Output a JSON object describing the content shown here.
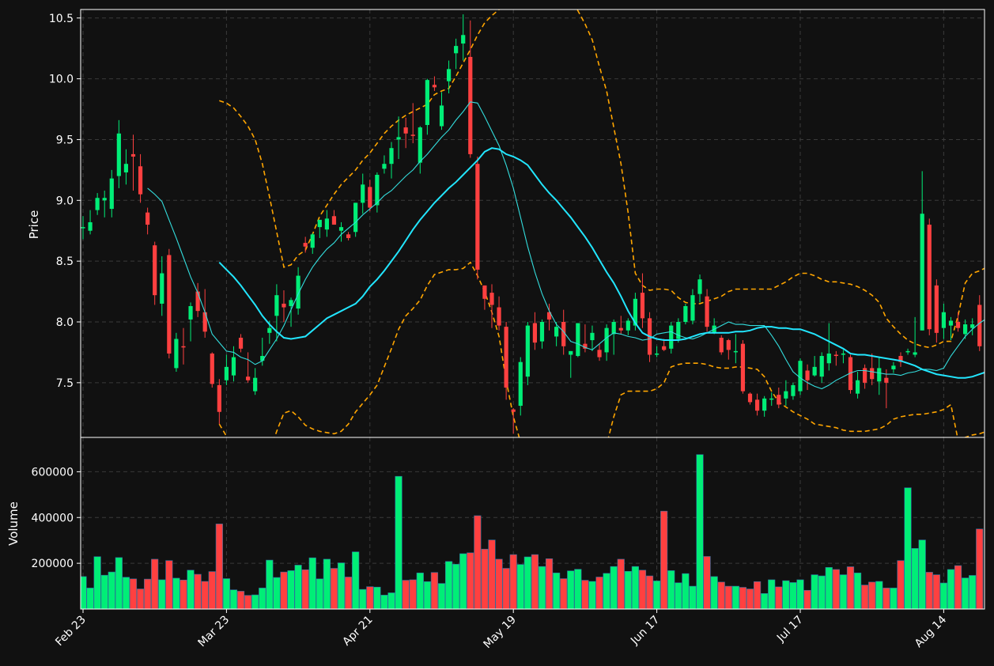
{
  "chart_data": {
    "type": "candlestick",
    "title": "",
    "colors": {
      "background": "#111111",
      "up": "#00ee77",
      "down": "#ff4040",
      "ma_fast": "#33dddd",
      "ma_slow": "#22e6ff",
      "bands": "#ffa500",
      "grid": "#3a3a3a",
      "text": "#ffffff"
    },
    "price_panel": {
      "ylabel": "Price",
      "ylim": [
        7.05,
        10.57
      ],
      "yticks": [
        "7.5",
        "8.0",
        "8.5",
        "9.0",
        "9.5",
        "10.0",
        "10.5"
      ],
      "grid": true
    },
    "volume_panel": {
      "ylabel": "Volume",
      "ylim": [
        0,
        750000
      ],
      "yticks": [
        "200000",
        "400000",
        "600000"
      ],
      "grid": true
    },
    "xticks": [
      {
        "label": "Feb 23",
        "index": 0
      },
      {
        "label": "Mar 23",
        "index": 20
      },
      {
        "label": "Apr 21",
        "index": 40
      },
      {
        "label": "May 19",
        "index": 60
      },
      {
        "label": "Jun 17",
        "index": 80
      },
      {
        "label": "Jul 17",
        "index": 100
      },
      {
        "label": "Aug 14",
        "index": 120
      }
    ],
    "ohlc": [
      [
        8.78,
        8.87,
        8.68,
        8.78
      ],
      [
        8.75,
        8.92,
        8.72,
        8.82
      ],
      [
        8.92,
        9.06,
        8.88,
        9.02
      ],
      [
        9.0,
        9.08,
        8.86,
        9.02
      ],
      [
        8.93,
        9.25,
        8.86,
        9.18
      ],
      [
        9.2,
        9.66,
        9.1,
        9.55
      ],
      [
        9.23,
        9.42,
        9.13,
        9.3
      ],
      [
        9.38,
        9.54,
        9.08,
        9.36
      ],
      [
        9.28,
        9.38,
        8.98,
        9.05
      ],
      [
        8.9,
        8.94,
        8.72,
        8.8
      ],
      [
        8.63,
        8.66,
        8.14,
        8.22
      ],
      [
        8.15,
        8.54,
        8.05,
        8.4
      ],
      [
        8.55,
        8.6,
        7.7,
        7.74
      ],
      [
        7.62,
        7.91,
        7.59,
        7.86
      ],
      [
        7.8,
        7.95,
        7.65,
        7.79
      ],
      [
        8.02,
        8.16,
        7.84,
        8.13
      ],
      [
        8.25,
        8.32,
        8.04,
        8.09
      ],
      [
        8.08,
        8.27,
        7.87,
        7.92
      ],
      [
        7.74,
        7.75,
        7.46,
        7.49
      ],
      [
        7.48,
        7.53,
        7.16,
        7.26
      ],
      [
        7.52,
        7.73,
        7.48,
        7.63
      ],
      [
        7.56,
        7.8,
        7.51,
        7.71
      ],
      [
        7.87,
        7.9,
        7.75,
        7.78
      ],
      [
        7.55,
        7.75,
        7.5,
        7.52
      ],
      [
        7.43,
        7.62,
        7.4,
        7.54
      ],
      [
        7.68,
        7.87,
        7.64,
        7.72
      ],
      [
        7.91,
        8.01,
        7.82,
        7.95
      ],
      [
        8.05,
        8.31,
        7.84,
        8.22
      ],
      [
        8.15,
        8.26,
        8.0,
        8.12
      ],
      [
        8.13,
        8.2,
        7.96,
        8.18
      ],
      [
        8.11,
        8.45,
        8.06,
        8.38
      ],
      [
        8.65,
        8.7,
        8.57,
        8.62
      ],
      [
        8.61,
        8.73,
        8.56,
        8.72
      ],
      [
        8.78,
        8.83,
        8.69,
        8.84
      ],
      [
        8.76,
        8.92,
        8.7,
        8.85
      ],
      [
        8.87,
        8.92,
        8.8,
        8.8
      ],
      [
        8.75,
        8.82,
        8.66,
        8.78
      ],
      [
        8.72,
        8.74,
        8.67,
        8.69
      ],
      [
        8.74,
        8.98,
        8.7,
        8.98
      ],
      [
        8.98,
        9.22,
        8.89,
        9.13
      ],
      [
        9.11,
        9.17,
        8.91,
        8.94
      ],
      [
        8.96,
        9.23,
        8.9,
        9.21
      ],
      [
        9.26,
        9.37,
        9.22,
        9.3
      ],
      [
        9.3,
        9.48,
        9.18,
        9.43
      ],
      [
        9.5,
        9.69,
        9.34,
        9.52
      ],
      [
        9.6,
        9.68,
        9.43,
        9.55
      ],
      [
        9.54,
        9.8,
        9.47,
        9.53
      ],
      [
        9.31,
        9.61,
        9.22,
        9.6
      ],
      [
        9.62,
        10.0,
        9.54,
        9.99
      ],
      [
        9.95,
        10.02,
        9.9,
        9.93
      ],
      [
        9.61,
        9.89,
        9.58,
        9.78
      ],
      [
        9.98,
        10.15,
        9.88,
        10.08
      ],
      [
        10.21,
        10.33,
        10.08,
        10.27
      ],
      [
        10.29,
        10.53,
        10.15,
        10.36
      ],
      [
        10.18,
        10.48,
        9.35,
        9.38
      ],
      [
        9.3,
        9.36,
        8.35,
        8.43
      ],
      [
        8.3,
        8.3,
        8.1,
        8.19
      ],
      [
        8.24,
        8.31,
        7.95,
        8.14
      ],
      [
        8.12,
        8.21,
        7.93,
        7.97
      ],
      [
        7.96,
        8.0,
        7.36,
        7.46
      ],
      [
        7.28,
        7.29,
        7.08,
        7.26
      ],
      [
        7.31,
        7.71,
        7.23,
        7.67
      ],
      [
        7.55,
        8.0,
        7.48,
        7.97
      ],
      [
        7.99,
        8.08,
        7.77,
        7.83
      ],
      [
        7.84,
        8.02,
        7.78,
        8.0
      ],
      [
        8.08,
        8.15,
        7.93,
        8.02
      ],
      [
        7.88,
        8.0,
        7.8,
        7.96
      ],
      [
        8.0,
        8.1,
        7.73,
        7.8
      ],
      [
        7.73,
        7.76,
        7.54,
        7.76
      ],
      [
        7.72,
        7.99,
        7.71,
        7.99
      ],
      [
        7.82,
        7.98,
        7.75,
        7.78
      ],
      [
        7.85,
        7.97,
        7.76,
        7.91
      ],
      [
        7.77,
        7.82,
        7.68,
        7.71
      ],
      [
        7.75,
        7.98,
        7.68,
        7.95
      ],
      [
        7.9,
        8.02,
        7.73,
        8.0
      ],
      [
        7.95,
        8.05,
        7.9,
        7.93
      ],
      [
        7.93,
        8.03,
        7.89,
        8.01
      ],
      [
        7.97,
        8.24,
        7.93,
        8.19
      ],
      [
        8.24,
        8.4,
        7.95,
        8.03
      ],
      [
        8.03,
        8.08,
        7.67,
        7.73
      ],
      [
        7.73,
        7.8,
        7.71,
        7.74
      ],
      [
        7.8,
        7.86,
        7.76,
        7.77
      ],
      [
        7.78,
        8.0,
        7.74,
        7.97
      ],
      [
        7.86,
        8.03,
        7.83,
        8.0
      ],
      [
        8.0,
        8.15,
        7.98,
        8.13
      ],
      [
        8.01,
        8.27,
        7.98,
        8.22
      ],
      [
        8.23,
        8.39,
        8.16,
        8.35
      ],
      [
        8.21,
        8.27,
        7.92,
        7.96
      ],
      [
        7.91,
        8.03,
        7.9,
        7.97
      ],
      [
        7.87,
        7.89,
        7.73,
        7.75
      ],
      [
        7.85,
        7.86,
        7.69,
        7.77
      ],
      [
        7.76,
        7.9,
        7.66,
        7.76
      ],
      [
        7.82,
        7.85,
        7.41,
        7.43
      ],
      [
        7.41,
        7.42,
        7.32,
        7.34
      ],
      [
        7.36,
        7.41,
        7.23,
        7.27
      ],
      [
        7.27,
        7.39,
        7.22,
        7.37
      ],
      [
        7.37,
        7.42,
        7.31,
        7.37
      ],
      [
        7.4,
        7.46,
        7.29,
        7.32
      ],
      [
        7.37,
        7.52,
        7.31,
        7.43
      ],
      [
        7.39,
        7.5,
        7.36,
        7.48
      ],
      [
        7.43,
        7.7,
        7.4,
        7.68
      ],
      [
        7.6,
        7.65,
        7.44,
        7.52
      ],
      [
        7.56,
        7.72,
        7.55,
        7.63
      ],
      [
        7.55,
        7.75,
        7.5,
        7.72
      ],
      [
        7.66,
        7.99,
        7.6,
        7.74
      ],
      [
        7.73,
        7.76,
        7.64,
        7.72
      ],
      [
        7.74,
        7.77,
        7.66,
        7.74
      ],
      [
        7.71,
        7.73,
        7.41,
        7.44
      ],
      [
        7.41,
        7.59,
        7.37,
        7.52
      ],
      [
        7.62,
        7.65,
        7.45,
        7.5
      ],
      [
        7.62,
        7.74,
        7.48,
        7.53
      ],
      [
        7.51,
        7.71,
        7.4,
        7.62
      ],
      [
        7.54,
        7.61,
        7.29,
        7.5
      ],
      [
        7.61,
        7.67,
        7.58,
        7.64
      ],
      [
        7.72,
        7.75,
        7.63,
        7.67
      ],
      [
        7.75,
        7.78,
        7.73,
        7.76
      ],
      [
        7.73,
        8.04,
        7.71,
        7.75
      ],
      [
        7.93,
        9.24,
        7.93,
        8.89
      ],
      [
        8.8,
        8.85,
        7.89,
        7.94
      ],
      [
        8.3,
        8.35,
        7.83,
        7.91
      ],
      [
        7.95,
        8.15,
        7.86,
        8.08
      ],
      [
        7.97,
        8.04,
        7.85,
        8.01
      ],
      [
        8.0,
        8.08,
        7.92,
        7.95
      ],
      [
        7.9,
        8.02,
        7.86,
        7.98
      ],
      [
        7.95,
        8.03,
        7.89,
        7.98
      ],
      [
        8.14,
        8.22,
        7.76,
        7.8
      ],
      [
        7.68,
        7.88,
        7.65,
        7.86
      ],
      [
        7.92,
        8.05,
        7.87,
        7.96
      ]
    ],
    "volume": [
      142000,
      92000,
      229000,
      148000,
      162000,
      225000,
      139000,
      132000,
      88000,
      131000,
      218000,
      128000,
      212000,
      135000,
      127000,
      170000,
      152000,
      121000,
      164000,
      372000,
      133000,
      84000,
      78000,
      60000,
      62000,
      92000,
      214000,
      138000,
      162000,
      168000,
      192000,
      172000,
      224000,
      132000,
      218000,
      178000,
      202000,
      140000,
      250000,
      86000,
      98000,
      96000,
      61000,
      71000,
      580000,
      126000,
      128000,
      158000,
      120000,
      160000,
      112000,
      208000,
      196000,
      242000,
      246000,
      408000,
      262000,
      302000,
      218000,
      178000,
      238000,
      195000,
      228000,
      238000,
      186000,
      220000,
      158000,
      133000,
      167000,
      174000,
      126000,
      121000,
      140000,
      156000,
      186000,
      218000,
      165000,
      186000,
      170000,
      145000,
      123000,
      428000,
      168000,
      115000,
      155000,
      100000,
      675000,
      230000,
      142000,
      118000,
      100000,
      100000,
      95000,
      88000,
      120000,
      68000,
      128000,
      97000,
      124000,
      116000,
      128000,
      82000,
      150000,
      145000,
      182000,
      173000,
      150000,
      185000,
      158000,
      105000,
      118000,
      121000,
      92000,
      92000,
      212000,
      530000,
      265000,
      302000,
      161000,
      150000,
      114000,
      173000,
      190000,
      136000,
      147000,
      350000
    ],
    "ma_fast": {
      "start_index": 9,
      "values": [
        9.1,
        9.05,
        8.99,
        8.84,
        8.69,
        8.53,
        8.37,
        8.24,
        8.08,
        7.9,
        7.83,
        7.76,
        7.75,
        7.71,
        7.69,
        7.65,
        7.68,
        7.77,
        7.86,
        7.97,
        8.1,
        8.23,
        8.35,
        8.45,
        8.53,
        8.6,
        8.65,
        8.72,
        8.77,
        8.82,
        8.88,
        8.93,
        8.98,
        9.04,
        9.08,
        9.14,
        9.2,
        9.25,
        9.32,
        9.38,
        9.45,
        9.52,
        9.58,
        9.66,
        9.73,
        9.81,
        9.8,
        9.69,
        9.57,
        9.45,
        9.29,
        9.1,
        8.86,
        8.62,
        8.41,
        8.23,
        8.09,
        7.98,
        7.92,
        7.84,
        7.82,
        7.79,
        7.77,
        7.82,
        7.87,
        7.91,
        7.9,
        7.88,
        7.87,
        7.85,
        7.86,
        7.9,
        7.91,
        7.92,
        7.89,
        7.87,
        7.86,
        7.88,
        7.91,
        7.94,
        7.97,
        8.0,
        7.98,
        7.98,
        7.97,
        7.97,
        7.97,
        7.89,
        7.8,
        7.69,
        7.59,
        7.54,
        7.5,
        7.47,
        7.45,
        7.48,
        7.52,
        7.55,
        7.58,
        7.6,
        7.6,
        7.59,
        7.58,
        7.57,
        7.57,
        7.56,
        7.58,
        7.59,
        7.61,
        7.61,
        7.6,
        7.62,
        7.72,
        7.8,
        7.88,
        7.94,
        7.99,
        8.03,
        8.07,
        8.07,
        8.08,
        7.98
      ]
    },
    "ma_slow": {
      "start_index": 19,
      "values": [
        8.49,
        8.43,
        8.37,
        8.3,
        8.22,
        8.14,
        8.05,
        7.98,
        7.92,
        7.87,
        7.86,
        7.87,
        7.88,
        7.93,
        7.98,
        8.03,
        8.06,
        8.09,
        8.12,
        8.15,
        8.21,
        8.29,
        8.35,
        8.42,
        8.5,
        8.58,
        8.67,
        8.76,
        8.84,
        8.91,
        8.98,
        9.04,
        9.1,
        9.15,
        9.21,
        9.27,
        9.33,
        9.4,
        9.43,
        9.42,
        9.38,
        9.36,
        9.33,
        9.29,
        9.21,
        9.13,
        9.06,
        9.0,
        8.93,
        8.86,
        8.78,
        8.7,
        8.61,
        8.51,
        8.41,
        8.32,
        8.21,
        8.09,
        7.99,
        7.91,
        7.88,
        7.86,
        7.85,
        7.85,
        7.85,
        7.86,
        7.88,
        7.9,
        7.91,
        7.91,
        7.91,
        7.91,
        7.92,
        7.92,
        7.93,
        7.95,
        7.96,
        7.96,
        7.95,
        7.95,
        7.94,
        7.94,
        7.92,
        7.9,
        7.87,
        7.84,
        7.81,
        7.78,
        7.74,
        7.73,
        7.73,
        7.72,
        7.71,
        7.7,
        7.69,
        7.68,
        7.66,
        7.64,
        7.61,
        7.59,
        7.57,
        7.56,
        7.55,
        7.54,
        7.54,
        7.55,
        7.57,
        7.59,
        7.66,
        7.71,
        7.74,
        7.77,
        7.78,
        7.8,
        7.82,
        7.83,
        7.84,
        7.85,
        7.86
      ]
    },
    "bands": {
      "start_index": 19,
      "upper": [
        9.82,
        9.8,
        9.76,
        9.69,
        9.61,
        9.5,
        9.3,
        9.03,
        8.74,
        8.45,
        8.47,
        8.55,
        8.59,
        8.72,
        8.87,
        8.96,
        9.05,
        9.13,
        9.19,
        9.25,
        9.33,
        9.39,
        9.47,
        9.55,
        9.61,
        9.66,
        9.7,
        9.73,
        9.76,
        9.79,
        9.87,
        9.9,
        9.92,
        10.02,
        10.13,
        10.24,
        10.36,
        10.46,
        10.52,
        10.57,
        10.8,
        11.0,
        11.1,
        11.2,
        11.3,
        11.1,
        10.9,
        10.8,
        10.7,
        10.65,
        10.56,
        10.45,
        10.32,
        10.1,
        9.9,
        9.6,
        9.3,
        8.9,
        8.4,
        8.3,
        8.26,
        8.27,
        8.27,
        8.26,
        8.2,
        8.16,
        8.15,
        8.15,
        8.17,
        8.19,
        8.21,
        8.25,
        8.27,
        8.27,
        8.27,
        8.27,
        8.27,
        8.27,
        8.3,
        8.33,
        8.37,
        8.4,
        8.4,
        8.38,
        8.35,
        8.33,
        8.33,
        8.32,
        8.31,
        8.29,
        8.26,
        8.22,
        8.16,
        8.03,
        7.96,
        7.9,
        7.85,
        7.82,
        7.8,
        7.79,
        7.81,
        7.84,
        7.84,
        8.05,
        8.32,
        8.4,
        8.42,
        8.45,
        8.47,
        8.48,
        8.5,
        8.51,
        8.51,
        8.51,
        8.52
      ],
      "lower": [
        7.16,
        7.06,
        6.98,
        6.91,
        6.83,
        6.78,
        6.8,
        6.93,
        7.1,
        7.25,
        7.27,
        7.22,
        7.15,
        7.12,
        7.1,
        7.09,
        7.08,
        7.1,
        7.16,
        7.26,
        7.33,
        7.4,
        7.48,
        7.63,
        7.78,
        7.94,
        8.05,
        8.11,
        8.18,
        8.3,
        8.39,
        8.41,
        8.43,
        8.43,
        8.44,
        8.49,
        8.38,
        8.25,
        8.08,
        7.88,
        7.52,
        7.22,
        7.01,
        6.9,
        6.8,
        6.75,
        6.7,
        6.7,
        6.7,
        6.7,
        6.7,
        6.7,
        6.7,
        6.8,
        6.99,
        7.22,
        7.4,
        7.43,
        7.43,
        7.43,
        7.43,
        7.45,
        7.5,
        7.63,
        7.65,
        7.66,
        7.66,
        7.66,
        7.65,
        7.63,
        7.62,
        7.62,
        7.63,
        7.63,
        7.62,
        7.61,
        7.55,
        7.43,
        7.34,
        7.3,
        7.26,
        7.23,
        7.2,
        7.16,
        7.15,
        7.14,
        7.13,
        7.11,
        7.1,
        7.1,
        7.1,
        7.11,
        7.12,
        7.15,
        7.2,
        7.22,
        7.23,
        7.24,
        7.24,
        7.25,
        7.26,
        7.28,
        7.32,
        7.03,
        7.05,
        7.07,
        7.08,
        7.1,
        7.12,
        7.14,
        7.16,
        7.17,
        7.18,
        7.18,
        7.2
      ]
    }
  }
}
